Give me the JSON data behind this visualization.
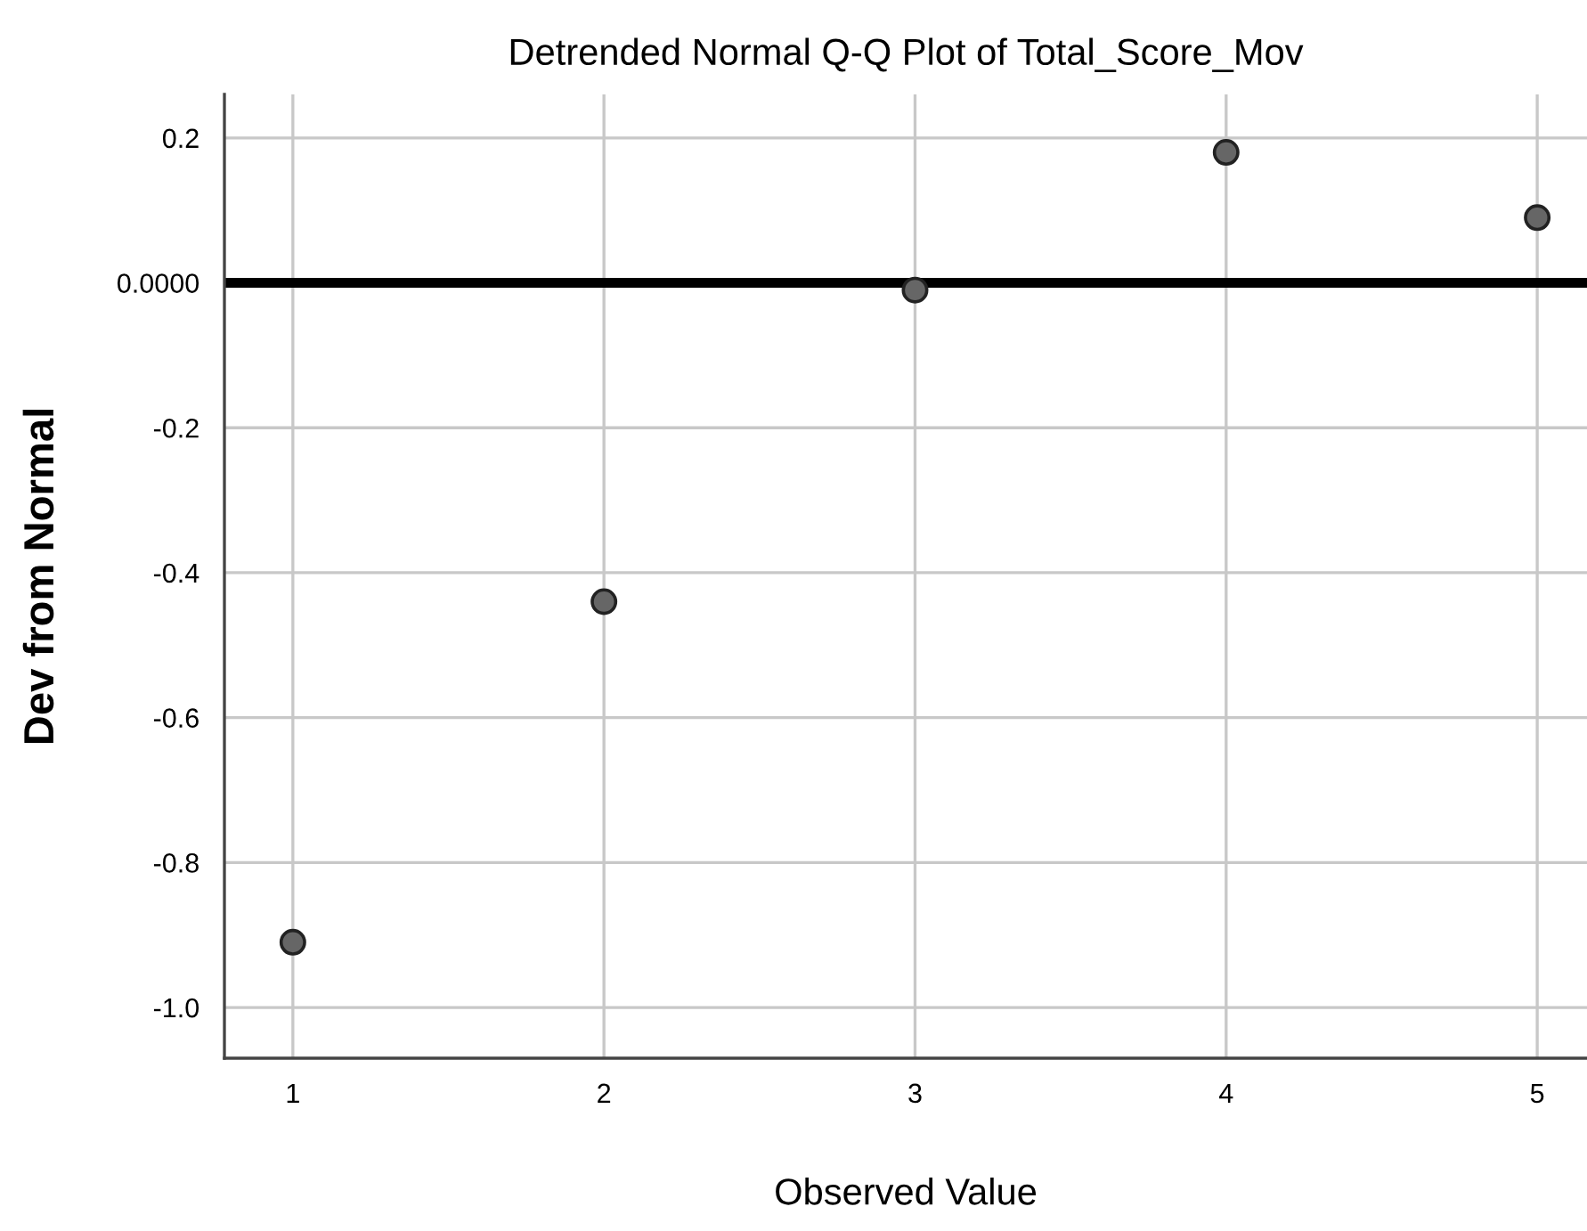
{
  "chart_data": {
    "type": "scatter",
    "title": "Detrended Normal Q-Q Plot of Total_Score_Mov",
    "xlabel": "Observed Value",
    "ylabel": "Dev from Normal",
    "x": [
      1,
      2,
      3,
      4,
      5
    ],
    "series": [
      {
        "color": "#666666",
        "values": [
          -0.91,
          -0.44,
          -0.01,
          0.18,
          0.09
        ]
      }
    ],
    "marker": "circle",
    "xlim": [
      0.78,
      5.16
    ],
    "ylim": [
      -1.07,
      0.26
    ],
    "xticks": [
      1,
      2,
      3,
      4,
      5
    ],
    "yticks": [
      {
        "value": -1.0,
        "label": "-1.0"
      },
      {
        "value": -0.8,
        "label": "-0.8"
      },
      {
        "value": -0.6,
        "label": "-0.6"
      },
      {
        "value": -0.4,
        "label": "-0.4"
      },
      {
        "value": -0.2,
        "label": "-0.2"
      },
      {
        "value": 0,
        "label": "0.0000"
      },
      {
        "value": 0.2,
        "label": "0.2"
      }
    ],
    "ref_lines": [
      {
        "axis": "y",
        "value": 0,
        "label": null,
        "color": "#000000"
      }
    ],
    "grid": true
  }
}
